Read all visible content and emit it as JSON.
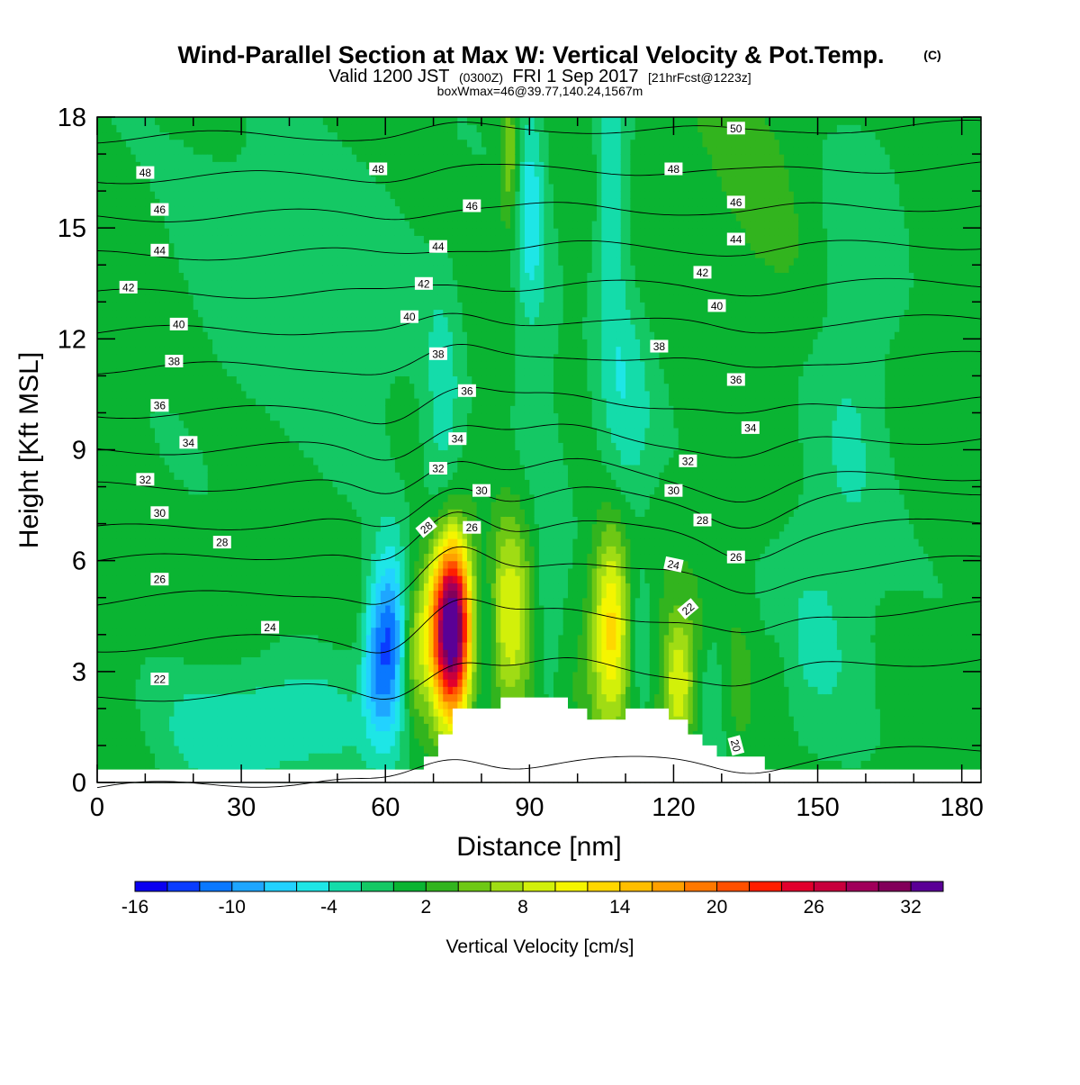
{
  "header": {
    "title": "Wind-Parallel Section at Max W: Vertical Velocity & Pot.Temp.",
    "copyright": "(C)",
    "subtitle_main": "Valid 1200 JST",
    "subtitle_utc": "(0300Z)",
    "subtitle_date": "FRI 1 Sep 2017",
    "subtitle_fcst": "[21hrFcst@1223z]",
    "box_info": "boxWmax=46@39.77,140.24,1567m"
  },
  "chart_data": {
    "type": "heatmap",
    "title": "Wind-Parallel Section at Max W: Vertical Velocity & Pot.Temp.",
    "xlabel": "Distance [nm]",
    "ylabel": "Height [Kft MSL]",
    "xlim": [
      0,
      184
    ],
    "ylim": [
      0,
      18
    ],
    "x_ticks": [
      0,
      30,
      60,
      90,
      120,
      150,
      180
    ],
    "y_ticks": [
      0,
      3,
      6,
      9,
      12,
      15,
      18
    ],
    "colorbar": {
      "label": "Vertical Velocity [cm/s]",
      "ticks": [
        -16,
        -10,
        -4,
        2,
        8,
        14,
        20,
        26,
        32
      ],
      "levels": [
        -16,
        -14,
        -12,
        -10,
        -8,
        -6,
        -4,
        -2,
        0,
        2,
        4,
        6,
        8,
        10,
        12,
        14,
        16,
        18,
        20,
        22,
        24,
        26,
        28,
        30,
        32,
        34,
        36
      ],
      "colors": [
        "#0a00f0",
        "#0a3cff",
        "#0a78ff",
        "#1ea6ff",
        "#22d2ff",
        "#1ee6e6",
        "#14dcaa",
        "#14c864",
        "#0ab432",
        "#32b41e",
        "#6ec814",
        "#a0dc14",
        "#d2f00a",
        "#f5f500",
        "#ffd700",
        "#ffbe00",
        "#ffa000",
        "#ff7800",
        "#ff5000",
        "#ff1e00",
        "#e1002d",
        "#c8003c",
        "#a0005a",
        "#82005a",
        "#5a0096"
      ]
    },
    "w_features": [
      {
        "x": 74,
        "z": 4.2,
        "sx": 2.6,
        "sz": 1.6,
        "w": 36
      },
      {
        "x": 70,
        "z": 4.3,
        "sx": 2.5,
        "sz": 1.6,
        "w": 8
      },
      {
        "x": 66,
        "z": 3.5,
        "sx": 1.5,
        "sz": 1.3,
        "w": 4
      },
      {
        "x": 61,
        "z": 3.8,
        "sx": 2.2,
        "sz": 1.8,
        "w": -12
      },
      {
        "x": 57.5,
        "z": 3.4,
        "sx": 1.8,
        "sz": 1.5,
        "w": -7
      },
      {
        "x": 86,
        "z": 4.5,
        "sx": 3.2,
        "sz": 2.0,
        "w": 9
      },
      {
        "x": 81,
        "z": 4.3,
        "sx": 1.6,
        "sz": 1.8,
        "w": -3
      },
      {
        "x": 94,
        "z": 4.3,
        "sx": 2.2,
        "sz": 1.8,
        "w": -3
      },
      {
        "x": 107,
        "z": 4.3,
        "sx": 2.8,
        "sz": 1.9,
        "w": 12
      },
      {
        "x": 113,
        "z": 3.8,
        "sx": 1.8,
        "sz": 1.6,
        "w": -3
      },
      {
        "x": 121,
        "z": 2.6,
        "sx": 2.4,
        "sz": 1.3,
        "w": 9
      },
      {
        "x": 128,
        "z": 2.5,
        "sx": 1.8,
        "sz": 1.3,
        "w": -3
      },
      {
        "x": 134,
        "z": 2.6,
        "sx": 2.0,
        "sz": 1.3,
        "w": 2
      },
      {
        "x": 142,
        "z": 3.0,
        "sx": 2.0,
        "sz": 1.5,
        "w": 1.2
      },
      {
        "x": 90,
        "z": 15.5,
        "sx": 2.4,
        "sz": 2.2,
        "w": -6
      },
      {
        "x": 86,
        "z": 16.8,
        "sx": 1.6,
        "sz": 1.4,
        "w": 6
      },
      {
        "x": 92,
        "z": 11.0,
        "sx": 5.0,
        "sz": 2.5,
        "w": -2
      },
      {
        "x": 107,
        "z": 15.5,
        "sx": 2.4,
        "sz": 2.6,
        "w": -5
      },
      {
        "x": 110,
        "z": 10.0,
        "sx": 4.0,
        "sz": 2.5,
        "w": -4
      },
      {
        "x": 72,
        "z": 9.5,
        "sx": 3.0,
        "sz": 3.0,
        "w": -4
      },
      {
        "x": 55,
        "z": 11.0,
        "sx": 10.0,
        "sz": 3.0,
        "w": -2
      },
      {
        "x": 32,
        "z": 15.0,
        "sx": 14.0,
        "sz": 3.0,
        "w": -2.5
      },
      {
        "x": 40,
        "z": 1.6,
        "sx": 12.0,
        "sz": 1.2,
        "w": -4
      },
      {
        "x": 22,
        "z": 1.5,
        "sx": 10.0,
        "sz": 1.3,
        "w": -3
      },
      {
        "x": 150,
        "z": 5.0,
        "sx": 8.0,
        "sz": 3.0,
        "w": -3
      },
      {
        "x": 158,
        "z": 11.0,
        "sx": 6.0,
        "sz": 3.0,
        "w": -3
      },
      {
        "x": 140,
        "z": 15.0,
        "sx": 8.0,
        "sz": 3.0,
        "w": 1.5
      },
      {
        "x": 160,
        "z": 16.5,
        "sx": 8.0,
        "sz": 2.5,
        "w": -1
      }
    ],
    "theta_isentropes": [
      {
        "value": 20,
        "z": 0.35
      },
      {
        "value": 22,
        "z": 2.8
      },
      {
        "value": 24,
        "z": 4.2
      },
      {
        "value": 26,
        "z": 5.45
      },
      {
        "value": 28,
        "z": 6.5
      },
      {
        "value": 30,
        "z": 7.35
      },
      {
        "value": 32,
        "z": 8.15
      },
      {
        "value": 34,
        "z": 9.15
      },
      {
        "value": 36,
        "z": 10.15
      },
      {
        "value": 38,
        "z": 11.35
      },
      {
        "value": 40,
        "z": 12.35
      },
      {
        "value": 42,
        "z": 13.35
      },
      {
        "value": 44,
        "z": 14.4
      },
      {
        "value": 46,
        "z": 15.45
      },
      {
        "value": 48,
        "z": 16.5
      },
      {
        "value": 50,
        "z": 17.6
      }
    ],
    "contour_labels": [
      {
        "text": "48",
        "x": 10,
        "z": 16.5
      },
      {
        "text": "48",
        "x": 58.5,
        "z": 16.6
      },
      {
        "text": "48",
        "x": 120,
        "z": 16.6
      },
      {
        "text": "50",
        "x": 133,
        "z": 17.7
      },
      {
        "text": "46",
        "x": 13,
        "z": 15.5
      },
      {
        "text": "46",
        "x": 78,
        "z": 15.6
      },
      {
        "text": "46",
        "x": 133,
        "z": 15.7
      },
      {
        "text": "44",
        "x": 13,
        "z": 14.4
      },
      {
        "text": "44",
        "x": 71,
        "z": 14.5
      },
      {
        "text": "44",
        "x": 133,
        "z": 14.7
      },
      {
        "text": "42",
        "x": 6.5,
        "z": 13.4
      },
      {
        "text": "42",
        "x": 68,
        "z": 13.5
      },
      {
        "text": "42",
        "x": 126,
        "z": 13.8
      },
      {
        "text": "40",
        "x": 17,
        "z": 12.4
      },
      {
        "text": "40",
        "x": 65,
        "z": 12.6
      },
      {
        "text": "40",
        "x": 129,
        "z": 12.9
      },
      {
        "text": "38",
        "x": 16,
        "z": 11.4
      },
      {
        "text": "38",
        "x": 71,
        "z": 11.6
      },
      {
        "text": "38",
        "x": 117,
        "z": 11.8
      },
      {
        "text": "36",
        "x": 13,
        "z": 10.2
      },
      {
        "text": "36",
        "x": 77,
        "z": 10.6
      },
      {
        "text": "36",
        "x": 133,
        "z": 10.9
      },
      {
        "text": "34",
        "x": 19,
        "z": 9.2
      },
      {
        "text": "34",
        "x": 75,
        "z": 9.3
      },
      {
        "text": "34",
        "x": 136,
        "z": 9.6
      },
      {
        "text": "32",
        "x": 10,
        "z": 8.2
      },
      {
        "text": "32",
        "x": 71,
        "z": 8.5
      },
      {
        "text": "32",
        "x": 123,
        "z": 8.7
      },
      {
        "text": "30",
        "x": 13,
        "z": 7.3
      },
      {
        "text": "30",
        "x": 80,
        "z": 7.9
      },
      {
        "text": "30",
        "x": 120,
        "z": 7.9
      },
      {
        "text": "28",
        "x": 26,
        "z": 6.5
      },
      {
        "text": "28",
        "x": 68.5,
        "z": 6.9,
        "rotate": -40
      },
      {
        "text": "28",
        "x": 126,
        "z": 7.1
      },
      {
        "text": "26",
        "x": 13,
        "z": 5.5
      },
      {
        "text": "26",
        "x": 78,
        "z": 6.9
      },
      {
        "text": "26",
        "x": 133,
        "z": 6.1
      },
      {
        "text": "24",
        "x": 36,
        "z": 4.2
      },
      {
        "text": "24",
        "x": 120,
        "z": 5.9,
        "rotate": 12
      },
      {
        "text": "22",
        "x": 13,
        "z": 2.8
      },
      {
        "text": "22",
        "x": 123,
        "z": 4.7,
        "rotate": -40
      },
      {
        "text": "20",
        "x": 133,
        "z": 1.0,
        "rotate": 75
      }
    ],
    "terrain": [
      [
        0,
        0.35
      ],
      [
        68,
        0.35
      ],
      [
        68,
        0.7
      ],
      [
        71,
        0.7
      ],
      [
        71,
        1.3
      ],
      [
        74,
        1.3
      ],
      [
        74,
        2.0
      ],
      [
        84,
        2.0
      ],
      [
        84,
        2.3
      ],
      [
        98,
        2.3
      ],
      [
        98,
        2.0
      ],
      [
        102,
        2.0
      ],
      [
        102,
        1.7
      ],
      [
        110,
        1.7
      ],
      [
        110,
        2.0
      ],
      [
        119,
        2.0
      ],
      [
        119,
        1.7
      ],
      [
        123,
        1.7
      ],
      [
        123,
        1.3
      ],
      [
        126,
        1.3
      ],
      [
        126,
        1.0
      ],
      [
        129,
        1.0
      ],
      [
        129,
        0.7
      ],
      [
        139,
        0.7
      ],
      [
        139,
        0.35
      ],
      [
        184,
        0.35
      ]
    ]
  }
}
